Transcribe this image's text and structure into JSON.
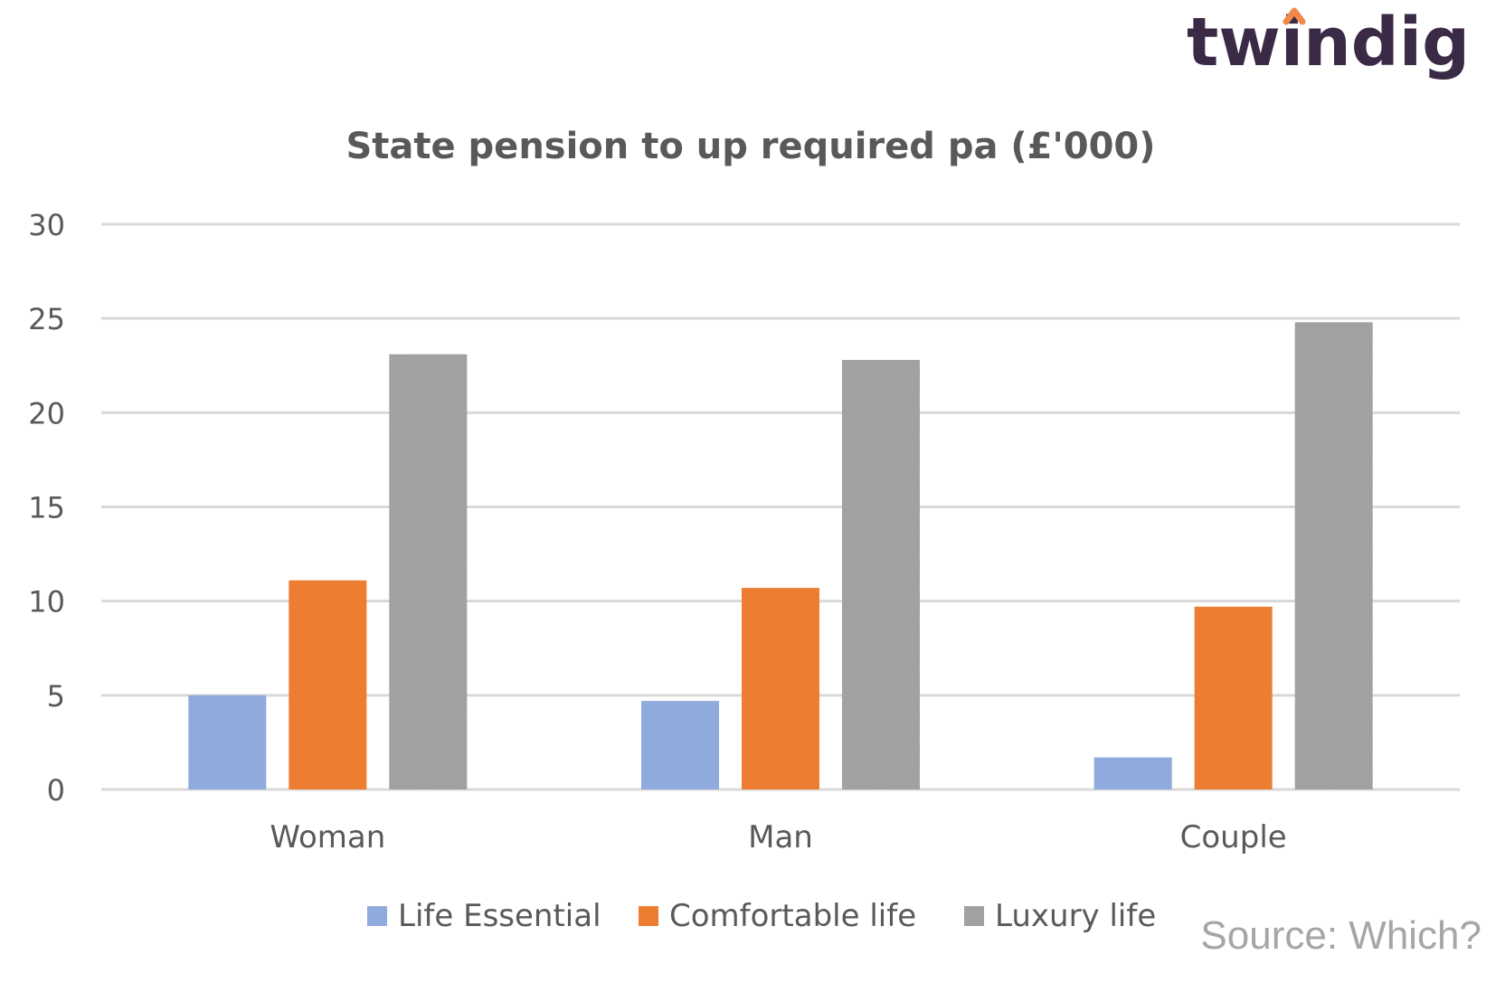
{
  "brand": {
    "logo_text": "twindig",
    "logo_color": "#3b2a45",
    "accent_color": "#f08a4b"
  },
  "source": "Source: Which?",
  "chart_data": {
    "type": "bar",
    "title": "State pension to up required pa (£'000)",
    "xlabel": "",
    "ylabel": "",
    "categories": [
      "Woman",
      "Man",
      "Couple"
    ],
    "series": [
      {
        "name": "Life Essential",
        "values": [
          5.0,
          4.7,
          1.7
        ],
        "color": "#8faadc"
      },
      {
        "name": "Comfortable life",
        "values": [
          11.1,
          10.7,
          9.7
        ],
        "color": "#ed7d31"
      },
      {
        "name": "Luxury life",
        "values": [
          23.1,
          22.8,
          24.8
        ],
        "color": "#a5a5a5"
      }
    ],
    "ylim": [
      0,
      30
    ],
    "yticks": [
      "0",
      "5",
      "10",
      "15",
      "20",
      "25",
      "30"
    ],
    "grid": true,
    "legend": "bottom"
  }
}
